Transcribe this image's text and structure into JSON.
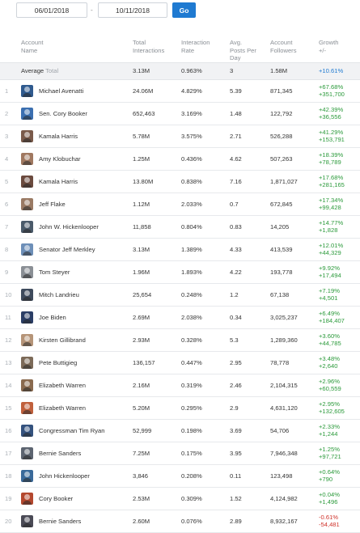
{
  "date_range": {
    "start": "06/01/2018",
    "end": "10/11/2018",
    "separator": "-",
    "go_label": "Go"
  },
  "headers": {
    "account": [
      "Account",
      "Name"
    ],
    "interactions": [
      "Total",
      "Interactions"
    ],
    "rate": [
      "Interaction",
      "Rate"
    ],
    "posts": [
      "Avg.",
      "Posts Per",
      "Day"
    ],
    "followers": [
      "Account",
      "Followers"
    ],
    "growth": [
      "Growth",
      "+/-"
    ]
  },
  "average": {
    "label": "Average",
    "label_suffix": "Total",
    "interactions": "3.13M",
    "rate": "0.963%",
    "posts": "3",
    "followers": "1.58M",
    "growth": "+10.61%"
  },
  "colors": {
    "accent": "#1f7ad1",
    "positive": "#2b9a3b",
    "negative": "#d0342c"
  },
  "rows": [
    {
      "rank": "1",
      "name": "Michael Avenatti",
      "interactions": "24.06M",
      "rate": "4.829%",
      "posts": "5.39",
      "followers": "871,345",
      "growth_pct": "+67.68%",
      "growth_abs": "+351,700",
      "trend": "up",
      "avatar_color": "#2f5a8e",
      "avatar_icon": "person-avatar-icon"
    },
    {
      "rank": "2",
      "name": "Sen. Cory Booker",
      "interactions": "652,463",
      "rate": "3.169%",
      "posts": "1.48",
      "followers": "122,792",
      "growth_pct": "+42.39%",
      "growth_abs": "+36,556",
      "trend": "up",
      "avatar_color": "#3b6fb0",
      "avatar_icon": "person-avatar-icon"
    },
    {
      "rank": "3",
      "name": "Kamala Harris",
      "interactions": "5.78M",
      "rate": "3.575%",
      "posts": "2.71",
      "followers": "526,288",
      "growth_pct": "+41.29%",
      "growth_abs": "+153,791",
      "trend": "up",
      "avatar_color": "#7a5a4a",
      "avatar_icon": "person-avatar-icon"
    },
    {
      "rank": "4",
      "name": "Amy Klobuchar",
      "interactions": "1.25M",
      "rate": "0.436%",
      "posts": "4.62",
      "followers": "507,263",
      "growth_pct": "+18.39%",
      "growth_abs": "+78,789",
      "trend": "up",
      "avatar_color": "#a07860",
      "avatar_icon": "person-avatar-icon"
    },
    {
      "rank": "5",
      "name": "Kamala Harris",
      "interactions": "13.80M",
      "rate": "0.838%",
      "posts": "7.16",
      "followers": "1,871,027",
      "growth_pct": "+17.68%",
      "growth_abs": "+281,165",
      "trend": "up",
      "avatar_color": "#6b4a3e",
      "avatar_icon": "person-avatar-icon"
    },
    {
      "rank": "6",
      "name": "Jeff Flake",
      "interactions": "1.12M",
      "rate": "2.033%",
      "posts": "0.7",
      "followers": "672,845",
      "growth_pct": "+17.34%",
      "growth_abs": "+99,428",
      "trend": "up",
      "avatar_color": "#9a7a64",
      "avatar_icon": "person-avatar-icon"
    },
    {
      "rank": "7",
      "name": "John W. Hickenlooper",
      "interactions": "11,858",
      "rate": "0.804%",
      "posts": "0.83",
      "followers": "14,205",
      "growth_pct": "+14.77%",
      "growth_abs": "+1,828",
      "trend": "up",
      "avatar_color": "#4a5a6a",
      "avatar_icon": "person-avatar-icon"
    },
    {
      "rank": "8",
      "name": "Senator Jeff Merkley",
      "interactions": "3.13M",
      "rate": "1.389%",
      "posts": "4.33",
      "followers": "413,539",
      "growth_pct": "+12.01%",
      "growth_abs": "+44,329",
      "trend": "up",
      "avatar_color": "#6d8fb8",
      "avatar_icon": "person-avatar-icon"
    },
    {
      "rank": "9",
      "name": "Tom Steyer",
      "interactions": "1.96M",
      "rate": "1.893%",
      "posts": "4.22",
      "followers": "193,778",
      "growth_pct": "+9.92%",
      "growth_abs": "+17,494",
      "trend": "up",
      "avatar_color": "#8a8f95",
      "avatar_icon": "person-avatar-icon"
    },
    {
      "rank": "10",
      "name": "Mitch Landrieu",
      "interactions": "25,654",
      "rate": "0.248%",
      "posts": "1.2",
      "followers": "67,138",
      "growth_pct": "+7.19%",
      "growth_abs": "+4,501",
      "trend": "up",
      "avatar_color": "#3e4a5c",
      "avatar_icon": "person-avatar-icon"
    },
    {
      "rank": "11",
      "name": "Joe Biden",
      "interactions": "2.69M",
      "rate": "2.038%",
      "posts": "0.34",
      "followers": "3,025,237",
      "growth_pct": "+6.49%",
      "growth_abs": "+184,407",
      "trend": "up",
      "avatar_color": "#2a3e66",
      "avatar_icon": "person-avatar-icon"
    },
    {
      "rank": "12",
      "name": "Kirsten Gillibrand",
      "interactions": "2.93M",
      "rate": "0.328%",
      "posts": "5.3",
      "followers": "1,289,360",
      "growth_pct": "+3.60%",
      "growth_abs": "+44,785",
      "trend": "up",
      "avatar_color": "#b59478",
      "avatar_icon": "person-avatar-icon"
    },
    {
      "rank": "13",
      "name": "Pete Buttigieg",
      "interactions": "136,157",
      "rate": "0.447%",
      "posts": "2.95",
      "followers": "78,778",
      "growth_pct": "+3.48%",
      "growth_abs": "+2,640",
      "trend": "up",
      "avatar_color": "#7c6a58",
      "avatar_icon": "person-avatar-icon"
    },
    {
      "rank": "14",
      "name": "Elizabeth Warren",
      "interactions": "2.16M",
      "rate": "0.319%",
      "posts": "2.46",
      "followers": "2,104,315",
      "growth_pct": "+2.96%",
      "growth_abs": "+60,559",
      "trend": "up",
      "avatar_color": "#8a6a4e",
      "avatar_icon": "person-avatar-icon"
    },
    {
      "rank": "15",
      "name": "Elizabeth Warren",
      "interactions": "5.20M",
      "rate": "0.295%",
      "posts": "2.9",
      "followers": "4,631,120",
      "growth_pct": "+2.95%",
      "growth_abs": "+132,605",
      "trend": "up",
      "avatar_color": "#c0603c",
      "avatar_icon": "person-avatar-icon"
    },
    {
      "rank": "16",
      "name": "Congressman Tim Ryan",
      "interactions": "52,999",
      "rate": "0.198%",
      "posts": "3.69",
      "followers": "54,706",
      "growth_pct": "+2.33%",
      "growth_abs": "+1,244",
      "trend": "up",
      "avatar_color": "#34527e",
      "avatar_icon": "person-avatar-icon"
    },
    {
      "rank": "17",
      "name": "Bernie Sanders",
      "interactions": "7.25M",
      "rate": "0.175%",
      "posts": "3.95",
      "followers": "7,946,348",
      "growth_pct": "+1.25%",
      "growth_abs": "+97,721",
      "trend": "up",
      "avatar_color": "#5c6470",
      "avatar_icon": "person-avatar-icon"
    },
    {
      "rank": "18",
      "name": "John Hickenlooper",
      "interactions": "3,846",
      "rate": "0.208%",
      "posts": "0.11",
      "followers": "123,498",
      "growth_pct": "+0.64%",
      "growth_abs": "+790",
      "trend": "up",
      "avatar_color": "#3a6a9a",
      "avatar_icon": "person-avatar-icon"
    },
    {
      "rank": "19",
      "name": "Cory Booker",
      "interactions": "2.53M",
      "rate": "0.309%",
      "posts": "1.52",
      "followers": "4,124,982",
      "growth_pct": "+0.04%",
      "growth_abs": "+1,496",
      "trend": "up",
      "avatar_color": "#b4482e",
      "avatar_icon": "person-avatar-icon"
    },
    {
      "rank": "20",
      "name": "Bernie Sanders",
      "interactions": "2.60M",
      "rate": "0.076%",
      "posts": "2.89",
      "followers": "8,932,167",
      "growth_pct": "-0.61%",
      "growth_abs": "-54,481",
      "trend": "down",
      "avatar_color": "#4a4a55",
      "avatar_icon": "person-avatar-icon"
    }
  ]
}
